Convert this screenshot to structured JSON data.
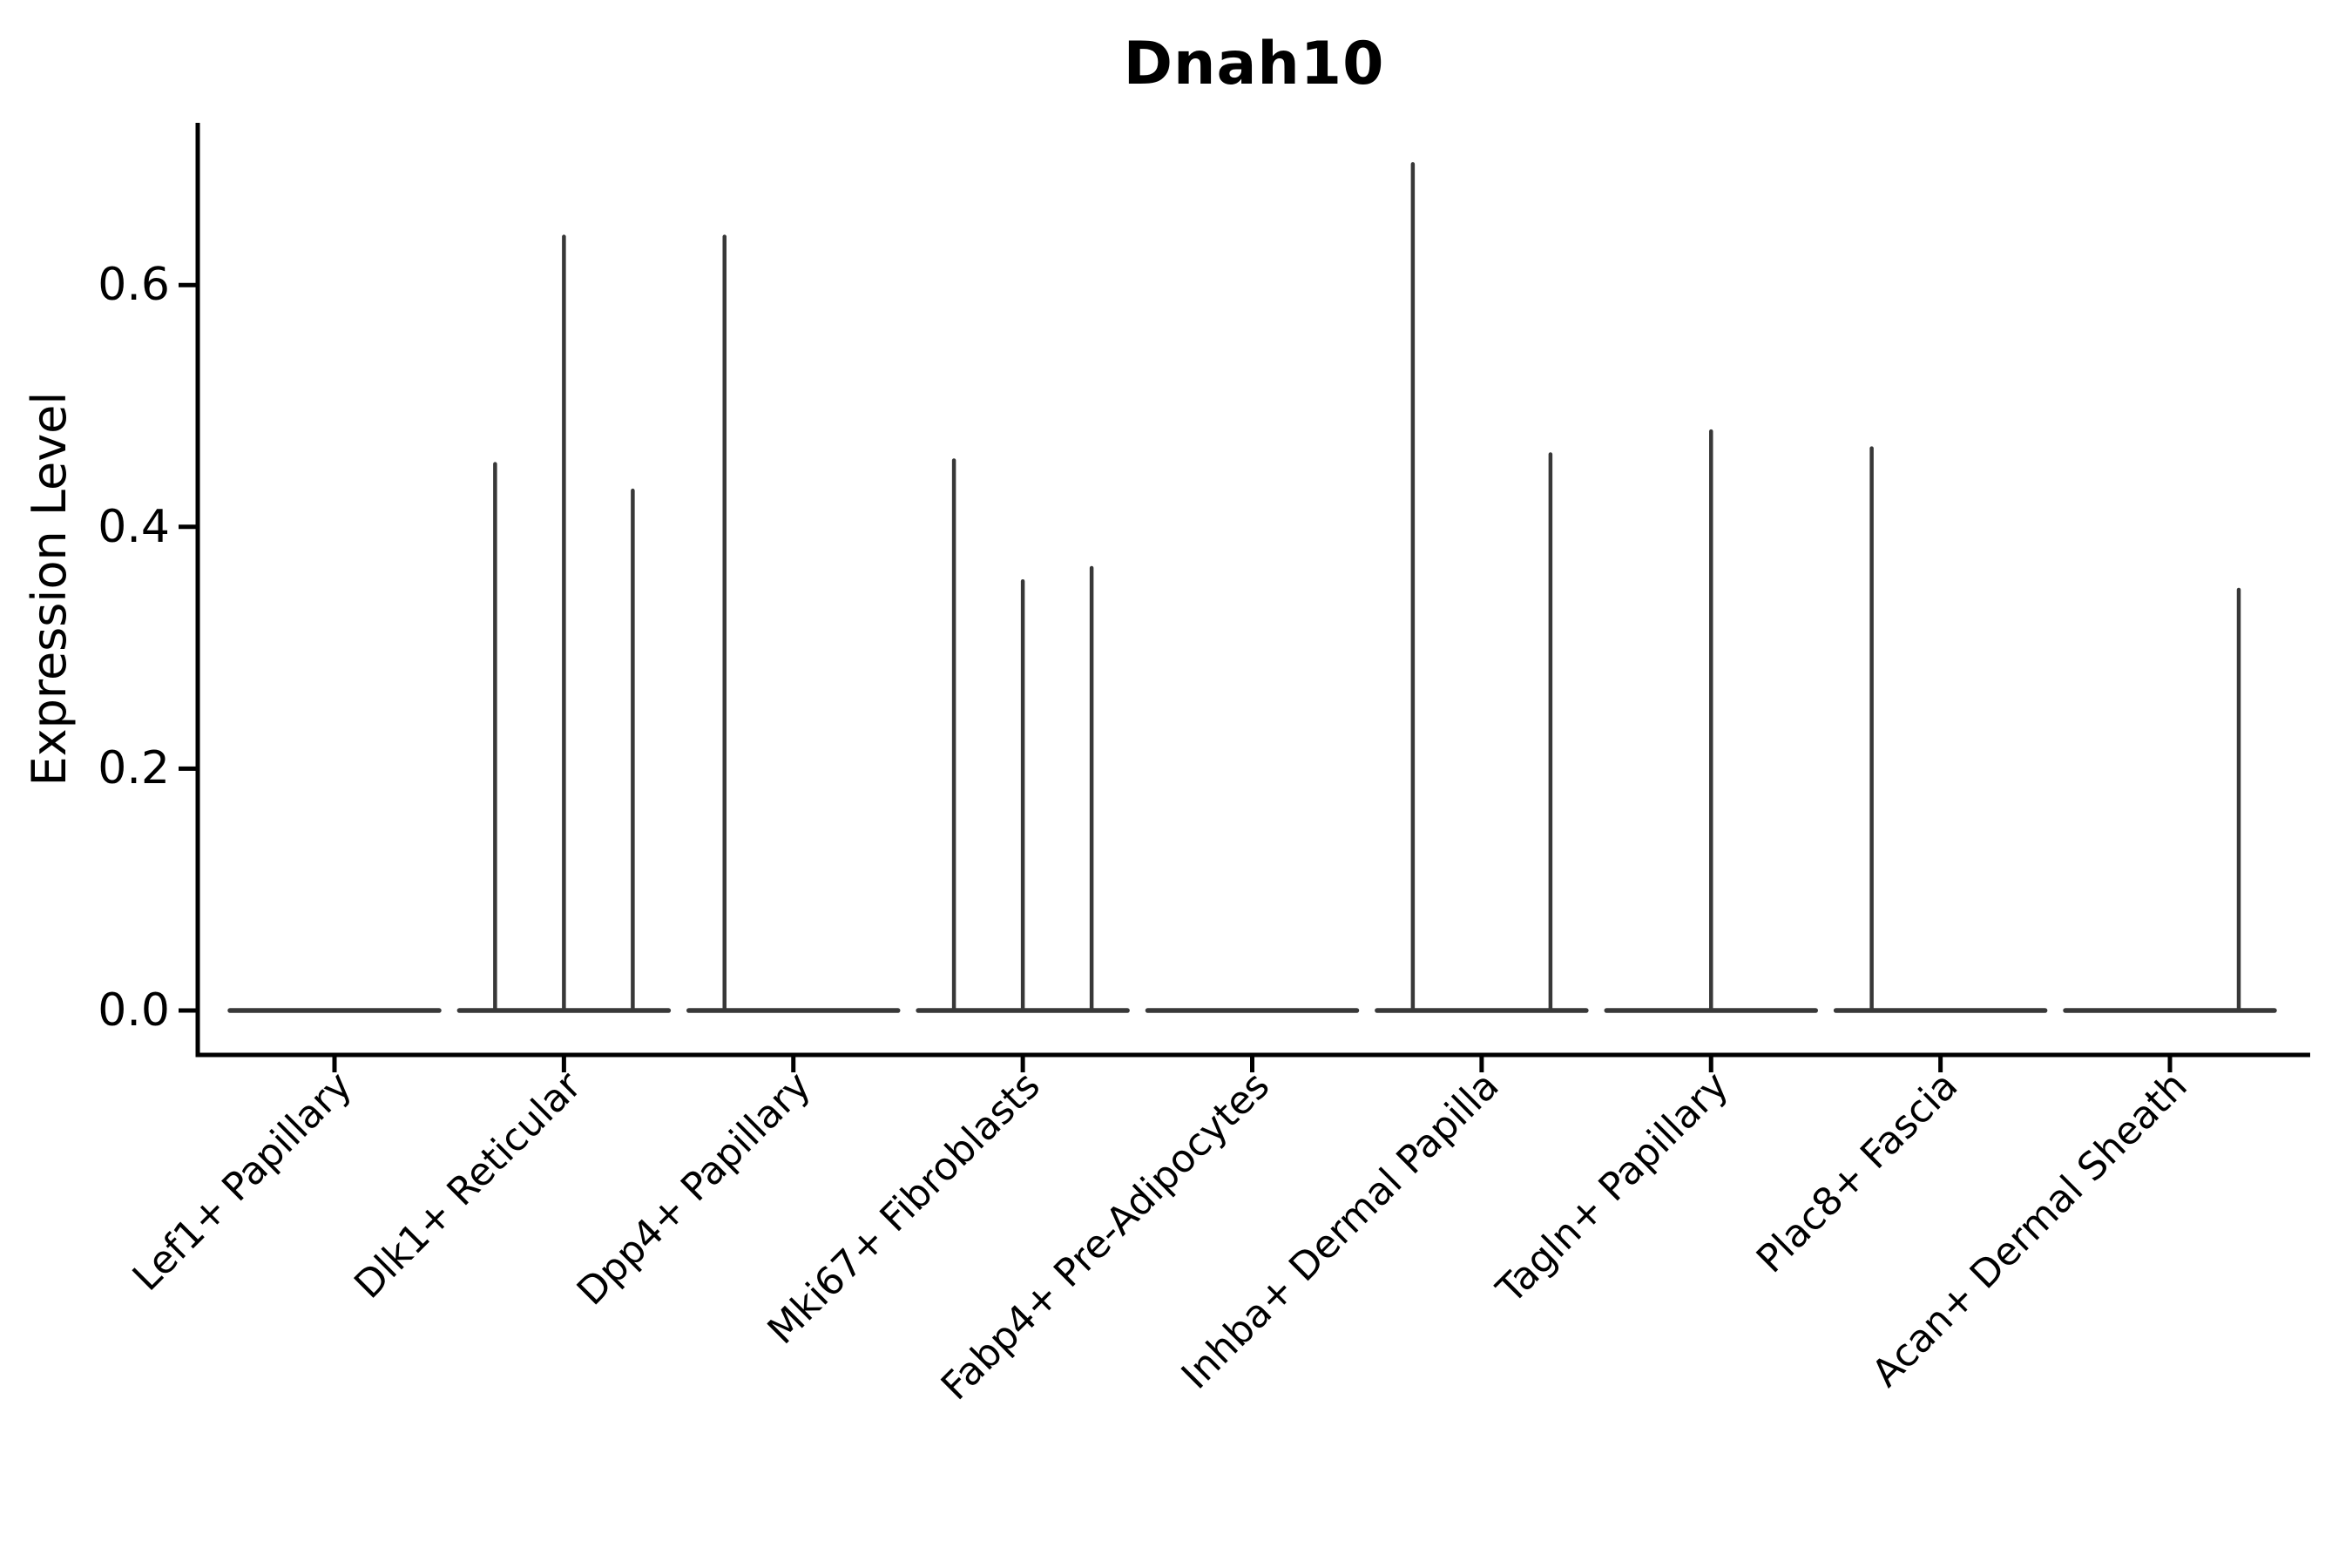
{
  "title": "Dnah10",
  "ylabel": "Expression Level",
  "colors": {
    "violin_line": "#383838",
    "axis": "#000000",
    "text": "#000000",
    "background": "#ffffff"
  },
  "chart_data": {
    "type": "violin",
    "title": "Dnah10",
    "xlabel": "",
    "ylabel": "Expression Level",
    "grid": false,
    "legend": "none",
    "ylim": [
      -0.037,
      0.735
    ],
    "yticks": [
      0.0,
      0.2,
      0.4,
      0.6
    ],
    "ytick_labels": [
      "0.0",
      "0.2",
      "0.4",
      "0.6"
    ],
    "sub_violin_offsets": [
      -0.3,
      0,
      0.3
    ],
    "categories": [
      "Lef1+ Papillary",
      "Dlk1+ Reticular",
      "Dpp4+ Papillary",
      "Mki67+ Fibroblasts",
      "Fabp4+ Pre-Adipocytes",
      "Inhba+ Dermal Papilla",
      "Tagln+ Papillary",
      "Plac8+ Fascia",
      "Acan+ Dermal Sheath"
    ],
    "series": [
      {
        "name": "Lef1+ Papillary",
        "max_values": [
          0,
          0,
          0
        ]
      },
      {
        "name": "Dlk1+ Reticular",
        "max_values": [
          0.452,
          0.64,
          0.43
        ]
      },
      {
        "name": "Dpp4+ Papillary",
        "max_values": [
          0.64,
          0,
          0
        ]
      },
      {
        "name": "Mki67+ Fibroblasts",
        "max_values": [
          0.455,
          0.355,
          0.366
        ]
      },
      {
        "name": "Fabp4+ Pre-Adipocytes",
        "max_values": [
          0,
          0,
          0
        ]
      },
      {
        "name": "Inhba+ Dermal Papilla",
        "max_values": [
          0.7,
          0,
          0.46
        ]
      },
      {
        "name": "Tagln+ Papillary",
        "max_values": [
          0,
          0.479,
          0
        ]
      },
      {
        "name": "Plac8+ Fascia",
        "max_values": [
          0.465,
          0,
          0
        ]
      },
      {
        "name": "Acan+ Dermal Sheath",
        "max_values": [
          0,
          0,
          0.348
        ]
      }
    ]
  }
}
